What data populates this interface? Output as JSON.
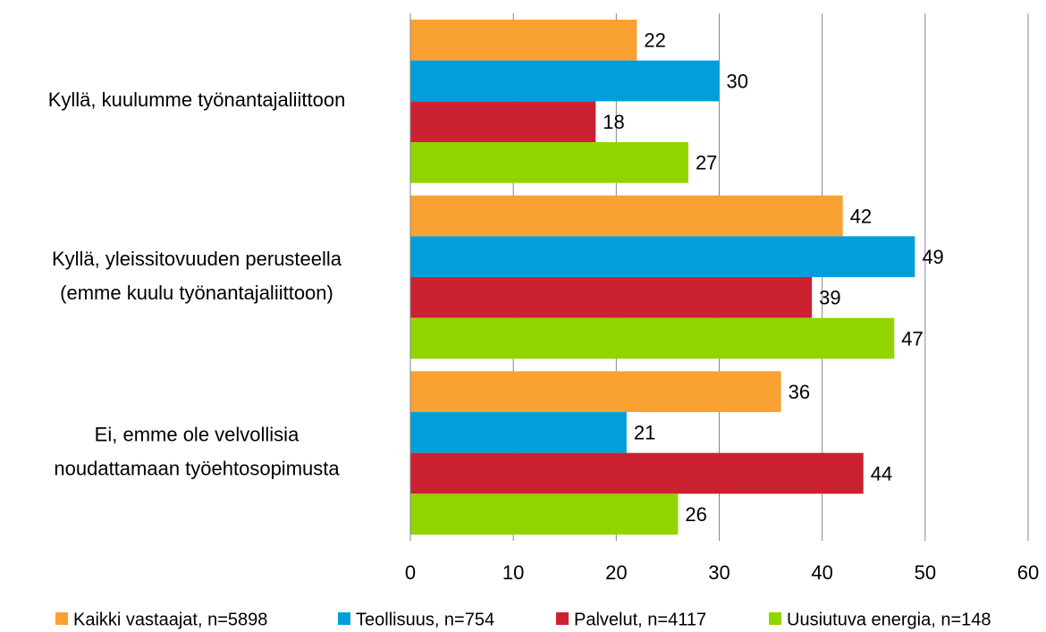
{
  "chart_data": {
    "type": "hbar",
    "categories": [
      [
        "Kyllä, kuulumme työnantajaliittoon"
      ],
      [
        "Kyllä, yleissitovuuden perusteella",
        "(emme kuulu työnantajaliittoon)"
      ],
      [
        "Ei, emme ole velvollisia",
        "noudattamaan työehtosopimusta"
      ]
    ],
    "series": [
      {
        "name": "Kaikki vastaajat, n=5898",
        "color": "#f9a133",
        "values": [
          22,
          42,
          36
        ]
      },
      {
        "name": "Teollisuus, n=754",
        "color": "#009fdb",
        "values": [
          30,
          49,
          21
        ]
      },
      {
        "name": "Palvelut, n=4117",
        "color": "#cc2131",
        "values": [
          18,
          39,
          44
        ]
      },
      {
        "name": "Uusiutuva energia, n=148",
        "color": "#92d400",
        "values": [
          27,
          47,
          26
        ]
      }
    ],
    "xlim": [
      0,
      60
    ],
    "xticks": [
      0,
      10,
      20,
      30,
      40,
      50,
      60
    ],
    "grid": true,
    "legend": "bottom"
  }
}
